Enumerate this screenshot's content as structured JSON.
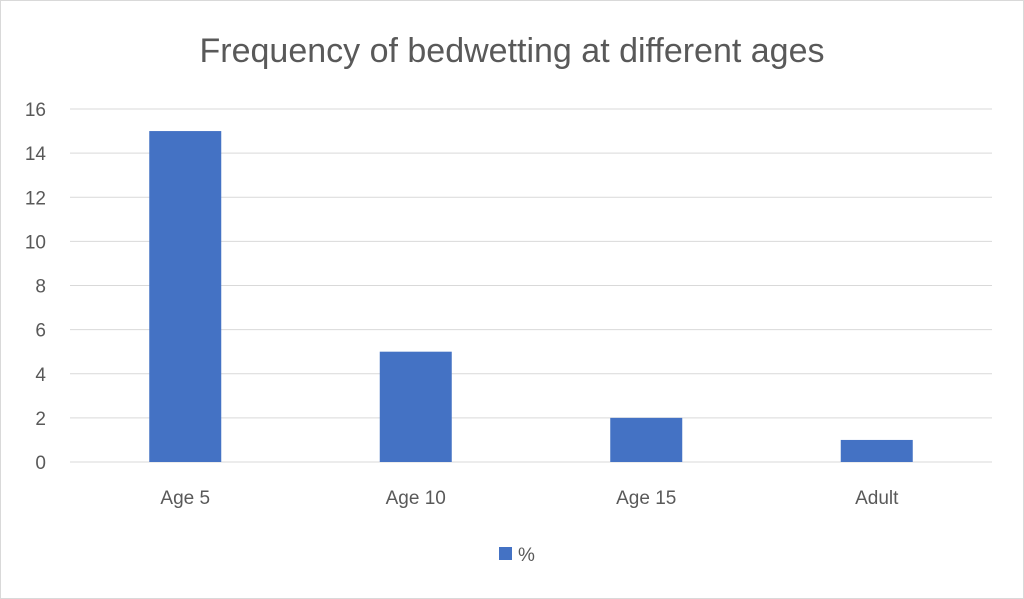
{
  "chart_data": {
    "type": "bar",
    "title": "Frequency of bedwetting at different ages",
    "categories": [
      "Age 5",
      "Age 10",
      "Age 15",
      "Adult"
    ],
    "series": [
      {
        "name": "%",
        "values": [
          15,
          5,
          2,
          1
        ],
        "color": "#4472c4"
      }
    ],
    "xlabel": "",
    "ylabel": "",
    "ylim": [
      0,
      16
    ],
    "yticks": [
      0,
      2,
      4,
      6,
      8,
      10,
      12,
      14,
      16
    ],
    "grid": true,
    "legend": "bottom"
  }
}
